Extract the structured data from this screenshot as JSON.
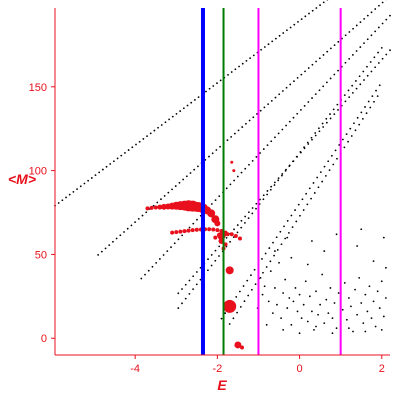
{
  "chart_data": {
    "type": "scatter",
    "title": "",
    "xlabel": "E",
    "ylabel": "<M>",
    "xlim": [
      -5.95,
      2.2
    ],
    "ylim": [
      -10,
      197
    ],
    "x_ticks": [
      -4,
      -2,
      0,
      2
    ],
    "y_ticks": [
      0,
      50,
      100,
      150
    ],
    "grid": false,
    "axis_color": "#e8101c",
    "vertical_lines": [
      {
        "x": -2.35,
        "color": "#0000ff"
      },
      {
        "x": -1.85,
        "color": "#007a00"
      },
      {
        "x": -1.0,
        "color": "#ff00ff"
      },
      {
        "x": 1.0,
        "color": "#ff00ff"
      }
    ],
    "series": [
      {
        "color": "#000000",
        "marker": "dot",
        "lines": [
          {
            "x": [
              -5.95,
              2.2
            ],
            "a": [
              79.0,
              5.8
            ]
          },
          {
            "x": [
              -4.9,
              2.2
            ],
            "a": [
              49.7,
              6.8
            ]
          },
          {
            "x": [
              -3.85,
              2.2
            ],
            "a": [
              35.6,
              8.1
            ]
          },
          {
            "x": [
              -2.95,
              2.2
            ],
            "a": [
              26.8,
              8.8
            ]
          },
          {
            "x": [
              -2.95,
              2.0
            ],
            "a": [
              18.0,
              9.8
            ]
          },
          {
            "x": [
              -1.9,
              1.95
            ],
            "a": [
              11.7,
              11.3
            ]
          },
          {
            "x": [
              -1.7,
              1.9
            ],
            "a": [
              8.5,
              11.8
            ]
          }
        ],
        "scatter_points": [
          [
            -1.02,
            18
          ],
          [
            -0.9,
            26
          ],
          [
            -0.85,
            31
          ],
          [
            -0.75,
            22
          ],
          [
            -0.7,
            40
          ],
          [
            -0.65,
            15
          ],
          [
            -0.6,
            30
          ],
          [
            -0.55,
            20
          ],
          [
            -0.5,
            45
          ],
          [
            -0.45,
            12
          ],
          [
            -0.4,
            27
          ],
          [
            -0.35,
            35
          ],
          [
            -0.3,
            18
          ],
          [
            -0.25,
            24
          ],
          [
            -0.2,
            8
          ],
          [
            -0.15,
            22
          ],
          [
            -0.1,
            30
          ],
          [
            -0.05,
            16
          ],
          [
            0.0,
            26
          ],
          [
            0.05,
            12
          ],
          [
            0.1,
            20
          ],
          [
            0.15,
            34
          ],
          [
            0.2,
            10
          ],
          [
            0.25,
            25
          ],
          [
            0.3,
            16
          ],
          [
            0.35,
            5
          ],
          [
            0.4,
            28
          ],
          [
            0.45,
            14
          ],
          [
            0.5,
            20
          ],
          [
            0.55,
            38
          ],
          [
            0.6,
            9
          ],
          [
            0.65,
            23
          ],
          [
            0.7,
            15
          ],
          [
            0.75,
            30
          ],
          [
            0.8,
            12
          ],
          [
            0.85,
            21
          ],
          [
            0.9,
            6
          ],
          [
            0.95,
            27
          ],
          [
            1.05,
            17
          ],
          [
            1.1,
            33
          ],
          [
            1.15,
            11
          ],
          [
            1.2,
            24
          ],
          [
            1.25,
            19
          ],
          [
            1.3,
            4
          ],
          [
            1.35,
            29
          ],
          [
            1.4,
            14
          ],
          [
            1.45,
            36
          ],
          [
            1.5,
            21
          ],
          [
            1.55,
            9
          ],
          [
            1.6,
            26
          ],
          [
            1.65,
            16
          ],
          [
            1.7,
            31
          ],
          [
            1.75,
            12
          ],
          [
            1.8,
            22
          ],
          [
            1.85,
            7
          ],
          [
            1.9,
            28
          ],
          [
            1.95,
            18
          ],
          [
            2.0,
            34
          ],
          [
            2.05,
            13
          ],
          [
            2.1,
            24
          ],
          [
            -0.8,
            8
          ],
          [
            -0.6,
            52
          ],
          [
            -0.4,
            5
          ],
          [
            -0.2,
            48
          ],
          [
            0.0,
            3
          ],
          [
            0.2,
            44
          ],
          [
            0.4,
            7
          ],
          [
            0.6,
            52
          ],
          [
            0.8,
            3
          ],
          [
            1.0,
            48
          ],
          [
            1.2,
            6
          ],
          [
            1.4,
            55
          ],
          [
            1.6,
            4
          ],
          [
            1.8,
            46
          ],
          [
            2.0,
            5
          ],
          [
            2.1,
            42
          ],
          [
            -0.95,
            36
          ],
          [
            -0.3,
            60
          ],
          [
            0.3,
            58
          ],
          [
            0.9,
            62
          ],
          [
            1.5,
            65
          ],
          [
            2.05,
            60
          ]
        ]
      },
      {
        "color": "#e8101c",
        "marker": "circle",
        "points": [
          [
            -3.7,
            77.5,
            2
          ],
          [
            -3.6,
            77.8,
            2
          ],
          [
            -3.5,
            78.0,
            2
          ],
          [
            -3.4,
            78.2,
            2.5
          ],
          [
            -3.3,
            78.4,
            3
          ],
          [
            -3.2,
            78.6,
            3
          ],
          [
            -3.1,
            78.8,
            3.5
          ],
          [
            -3.0,
            79.0,
            4
          ],
          [
            -2.9,
            79.1,
            4.5
          ],
          [
            -2.8,
            79.1,
            5
          ],
          [
            -2.7,
            79.0,
            5.5
          ],
          [
            -2.6,
            78.8,
            5.5
          ],
          [
            -2.5,
            78.4,
            5
          ],
          [
            -2.45,
            78.2,
            5
          ],
          [
            -2.35,
            77.5,
            5
          ],
          [
            -2.25,
            76.3,
            4
          ],
          [
            -2.15,
            74.5,
            4
          ],
          [
            -2.05,
            71.0,
            4
          ],
          [
            -2.0,
            68.5,
            3
          ],
          [
            -3.1,
            63.0,
            2
          ],
          [
            -3.0,
            63.3,
            2
          ],
          [
            -2.9,
            63.6,
            2
          ],
          [
            -2.8,
            63.9,
            2
          ],
          [
            -2.7,
            64.2,
            2
          ],
          [
            -2.6,
            64.5,
            2
          ],
          [
            -2.5,
            64.7,
            2
          ],
          [
            -2.4,
            64.9,
            2
          ],
          [
            -2.3,
            65.0,
            2
          ],
          [
            -2.2,
            65.0,
            2
          ],
          [
            -2.1,
            64.9,
            2
          ],
          [
            -2.0,
            64.5,
            2
          ],
          [
            -1.9,
            64.0,
            2
          ],
          [
            -1.8,
            63.0,
            2
          ],
          [
            -1.75,
            62.0,
            2
          ],
          [
            -1.65,
            62.0,
            2
          ],
          [
            -1.55,
            61.0,
            2
          ],
          [
            -1.45,
            59.5,
            2
          ],
          [
            -2.05,
            60.0,
            2
          ],
          [
            -1.95,
            61.5,
            2.5
          ],
          [
            -1.85,
            62.0,
            3
          ],
          [
            -1.9,
            58.0,
            3
          ],
          [
            -1.85,
            53.5,
            2
          ],
          [
            -1.8,
            56.0,
            2
          ],
          [
            -1.9,
            61.0,
            4
          ],
          [
            -1.7,
            40.5,
            4
          ],
          [
            -1.7,
            19.0,
            6.5
          ],
          [
            -1.5,
            -4.0,
            3.5
          ],
          [
            -1.4,
            -5.5,
            2
          ],
          [
            -1.65,
            105.0,
            1.5
          ],
          [
            -1.6,
            100.0,
            1.5
          ]
        ]
      }
    ]
  }
}
